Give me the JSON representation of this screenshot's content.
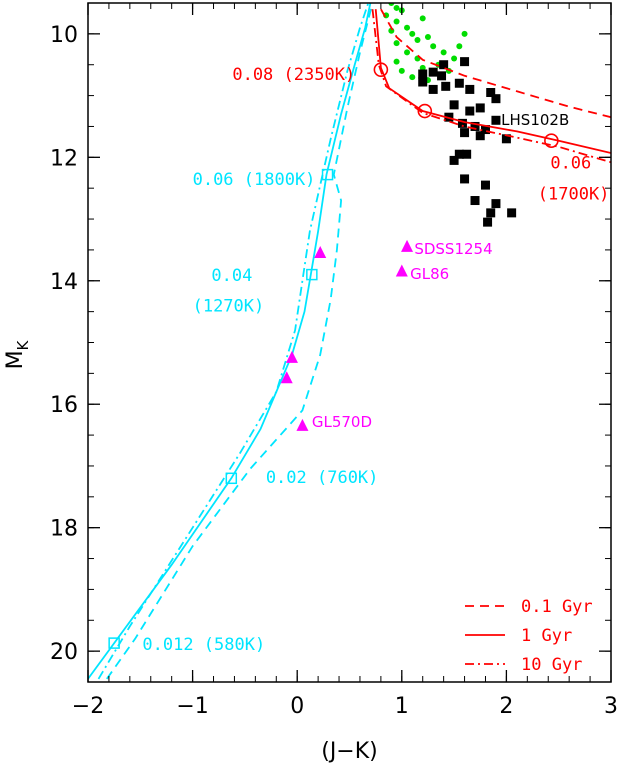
{
  "chart_data": {
    "type": "scatter",
    "xlabel": "(J−K)",
    "ylabel": "M",
    "ylabel_sub": "K",
    "xlim": [
      -2,
      3
    ],
    "ylim": [
      20.5,
      9.5
    ],
    "y_inverted": true,
    "x_ticks": [
      -2,
      -1,
      0,
      1,
      2,
      3
    ],
    "x_tick_labels": [
      "−2",
      "−1",
      "0",
      "1",
      "2",
      "3"
    ],
    "y_ticks": [
      10,
      12,
      14,
      16,
      18,
      20
    ],
    "y_tick_labels": [
      "10",
      "12",
      "14",
      "16",
      "18",
      "20"
    ],
    "colors": {
      "red": "#ff0000",
      "cyan": "#00e5ff",
      "magenta": "#ff00ff",
      "green": "#00dd00",
      "black": "#000000"
    },
    "legend": {
      "position": "bottom-right",
      "entries": [
        {
          "label": "0.1 Gyr",
          "style": "dashed"
        },
        {
          "label": "1 Gyr",
          "style": "solid"
        },
        {
          "label": "10 Gyr",
          "style": "dashdot"
        }
      ]
    },
    "cyan_tracks": [
      {
        "style": "solid",
        "points": [
          [
            -2.0,
            20.45
          ],
          [
            -1.75,
            19.87
          ],
          [
            -1.2,
            18.6
          ],
          [
            -0.63,
            17.2
          ],
          [
            -0.35,
            16.4
          ],
          [
            -0.05,
            15.2
          ],
          [
            0.07,
            14.5
          ],
          [
            0.13,
            13.9
          ],
          [
            0.2,
            13.2
          ],
          [
            0.28,
            12.28
          ],
          [
            0.42,
            11.3
          ],
          [
            0.55,
            10.5
          ],
          [
            0.65,
            9.9
          ],
          [
            0.7,
            9.5
          ]
        ]
      },
      {
        "style": "dashed",
        "points": [
          [
            -1.82,
            20.45
          ],
          [
            -1.55,
            19.8
          ],
          [
            -1.0,
            18.3
          ],
          [
            -0.45,
            17.05
          ],
          [
            0.05,
            16.1
          ],
          [
            0.22,
            15.2
          ],
          [
            0.32,
            14.3
          ],
          [
            0.38,
            13.5
          ],
          [
            0.42,
            12.7
          ],
          [
            0.35,
            12.28
          ],
          [
            0.48,
            11.2
          ],
          [
            0.6,
            10.3
          ],
          [
            0.72,
            9.5
          ]
        ]
      },
      {
        "style": "dashdot",
        "points": [
          [
            -1.9,
            20.45
          ],
          [
            -1.6,
            19.6
          ],
          [
            -1.0,
            18.0
          ],
          [
            -0.55,
            16.8
          ],
          [
            -0.2,
            15.8
          ],
          [
            -0.02,
            14.8
          ],
          [
            0.05,
            14.0
          ],
          [
            0.12,
            13.2
          ],
          [
            0.2,
            12.6
          ],
          [
            0.32,
            11.7
          ],
          [
            0.48,
            10.6
          ],
          [
            0.6,
            9.9
          ],
          [
            0.68,
            9.5
          ]
        ]
      }
    ],
    "cyan_markers": [
      {
        "x": 0.29,
        "y": 12.28
      },
      {
        "x": 0.14,
        "y": 13.9
      },
      {
        "x": -0.63,
        "y": 17.2
      },
      {
        "x": -1.75,
        "y": 19.87
      }
    ],
    "red_tracks": [
      {
        "style": "dashed",
        "points": [
          [
            0.8,
            9.6
          ],
          [
            0.95,
            10.05
          ],
          [
            1.2,
            10.42
          ],
          [
            1.6,
            10.68
          ],
          [
            2.1,
            10.93
          ],
          [
            2.6,
            11.18
          ],
          [
            3.0,
            11.35
          ]
        ]
      },
      {
        "style": "solid",
        "points": [
          [
            0.75,
            9.6
          ],
          [
            0.8,
            10.55
          ],
          [
            0.88,
            10.88
          ],
          [
            1.2,
            11.25
          ],
          [
            1.6,
            11.43
          ],
          [
            2.1,
            11.58
          ],
          [
            2.5,
            11.73
          ],
          [
            3.0,
            11.93
          ]
        ]
      },
      {
        "style": "dashdot",
        "points": [
          [
            0.72,
            9.6
          ],
          [
            0.78,
            10.5
          ],
          [
            0.85,
            10.85
          ],
          [
            1.2,
            11.28
          ],
          [
            1.6,
            11.5
          ],
          [
            2.1,
            11.68
          ],
          [
            2.5,
            11.83
          ],
          [
            3.0,
            12.08
          ]
        ]
      }
    ],
    "red_markers": [
      {
        "x": 0.8,
        "y": 10.58
      },
      {
        "x": 1.22,
        "y": 11.25
      },
      {
        "x": 2.43,
        "y": 11.73
      }
    ],
    "green_points": [
      [
        0.9,
        9.5
      ],
      [
        0.95,
        9.58
      ],
      [
        1.0,
        9.62
      ],
      [
        0.85,
        9.7
      ],
      [
        0.95,
        9.8
      ],
      [
        1.05,
        9.9
      ],
      [
        0.9,
        9.95
      ],
      [
        1.1,
        10.0
      ],
      [
        1.15,
        10.1
      ],
      [
        0.95,
        10.15
      ],
      [
        1.25,
        10.05
      ],
      [
        1.3,
        10.2
      ],
      [
        1.05,
        10.3
      ],
      [
        1.15,
        10.4
      ],
      [
        1.4,
        10.3
      ],
      [
        1.5,
        10.4
      ],
      [
        1.35,
        10.5
      ],
      [
        1.2,
        10.55
      ],
      [
        1.0,
        10.6
      ],
      [
        1.1,
        10.7
      ],
      [
        1.25,
        10.75
      ],
      [
        0.95,
        10.45
      ],
      [
        1.45,
        10.6
      ],
      [
        1.55,
        10.2
      ],
      [
        1.6,
        10.0
      ],
      [
        1.2,
        9.75
      ]
    ],
    "black_points": [
      [
        1.2,
        10.65
      ],
      [
        1.3,
        10.62
      ],
      [
        1.38,
        10.68
      ],
      [
        1.4,
        10.5
      ],
      [
        1.2,
        10.78
      ],
      [
        1.3,
        10.9
      ],
      [
        1.42,
        10.85
      ],
      [
        1.55,
        10.8
      ],
      [
        1.6,
        10.45
      ],
      [
        1.65,
        10.9
      ],
      [
        1.85,
        10.95
      ],
      [
        1.5,
        11.15
      ],
      [
        1.65,
        11.25
      ],
      [
        1.75,
        11.2
      ],
      [
        1.9,
        11.05
      ],
      [
        1.45,
        11.35
      ],
      [
        1.58,
        11.45
      ],
      [
        1.7,
        11.5
      ],
      [
        1.8,
        11.55
      ],
      [
        1.9,
        11.4
      ],
      [
        1.6,
        11.6
      ],
      [
        1.75,
        11.65
      ],
      [
        2.0,
        11.7
      ],
      [
        1.55,
        11.95
      ],
      [
        1.62,
        11.95
      ],
      [
        1.5,
        12.05
      ],
      [
        1.6,
        12.35
      ],
      [
        1.8,
        12.45
      ],
      [
        1.7,
        12.7
      ],
      [
        1.9,
        12.75
      ],
      [
        1.85,
        12.9
      ],
      [
        2.05,
        12.9
      ],
      [
        1.82,
        13.05
      ]
    ],
    "magenta_points": [
      {
        "x": 0.22,
        "y": 13.55
      },
      {
        "x": 1.05,
        "y": 13.45
      },
      {
        "x": 1.0,
        "y": 13.85
      },
      {
        "x": -0.05,
        "y": 15.25
      },
      {
        "x": -0.1,
        "y": 15.58
      },
      {
        "x": 0.05,
        "y": 16.35
      }
    ],
    "annotations": [
      {
        "text": "0.08 (2350K)",
        "color": "red",
        "x": -0.62,
        "y": 10.75,
        "anchor": "start"
      },
      {
        "text": "LHS102B",
        "color": "black",
        "x": 1.95,
        "y": 11.48,
        "anchor": "start"
      },
      {
        "text": "0.06",
        "color": "red",
        "x": 2.42,
        "y": 12.18,
        "anchor": "start"
      },
      {
        "text": "(1700K)",
        "color": "red",
        "x": 2.3,
        "y": 12.68,
        "anchor": "start"
      },
      {
        "text": "0.06 (1800K)",
        "color": "cyan",
        "x": -1.0,
        "y": 12.45,
        "anchor": "start"
      },
      {
        "text": "SDSS1254",
        "color": "magenta",
        "x": 1.12,
        "y": 13.57,
        "anchor": "start"
      },
      {
        "text": "GL86",
        "color": "magenta",
        "x": 1.08,
        "y": 13.97,
        "anchor": "start"
      },
      {
        "text": "0.04",
        "color": "cyan",
        "x": -0.82,
        "y": 14.0,
        "anchor": "start"
      },
      {
        "text": "(1270K)",
        "color": "cyan",
        "x": -1.0,
        "y": 14.5,
        "anchor": "start"
      },
      {
        "text": "GL570D",
        "color": "magenta",
        "x": 0.14,
        "y": 16.37,
        "anchor": "start"
      },
      {
        "text": "0.02 (760K)",
        "color": "cyan",
        "x": -0.3,
        "y": 17.28,
        "anchor": "start"
      },
      {
        "text": "0.012 (580K)",
        "color": "cyan",
        "x": -1.48,
        "y": 19.98,
        "anchor": "start"
      }
    ]
  }
}
